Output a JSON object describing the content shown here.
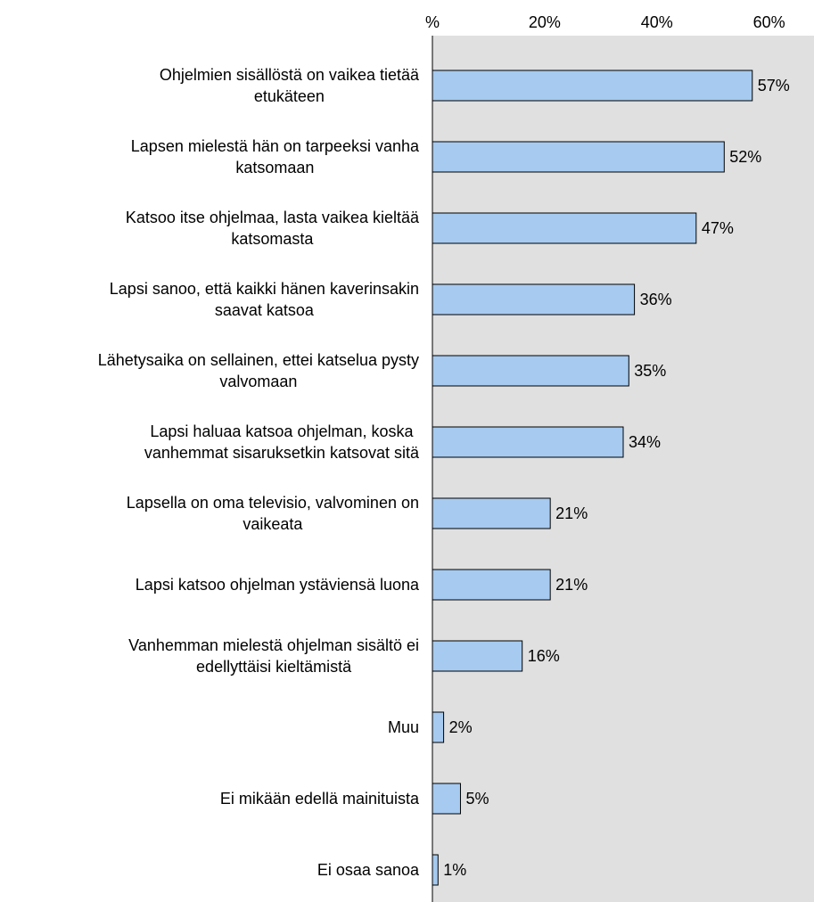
{
  "chart_data": {
    "type": "hbar",
    "categories": [
      "Ohjelmien sisällöstä on vaikea tietää\netukäteen",
      "Lapsen mielestä hän on tarpeeksi vanha\nkatsomaan",
      "Katsoo itse ohjelmaa, lasta vaikea kieltää\nkatsomasta",
      "Lapsi sanoo, että kaikki hänen kaverinsakin\nsaavat katsoa",
      "Lähetysaika on sellainen, ettei katselua pysty\nvalvomaan",
      "Lapsi haluaa katsoa ohjelman, koska\nvanhemmat sisaruksetkin katsovat sitä",
      "Lapsella on oma televisio, valvominen on\nvaikeata",
      "Lapsi katsoo ohjelman ystäviensä luona",
      "Vanhemman mielestä ohjelman sisältö ei\nedellyttäisi kieltämistä",
      "Muu",
      "Ei mikään edellä mainituista",
      "Ei osaa sanoa"
    ],
    "values": [
      57,
      52,
      47,
      36,
      35,
      34,
      21,
      21,
      16,
      2,
      5,
      1
    ],
    "value_labels": [
      "57%",
      "52%",
      "47%",
      "36%",
      "35%",
      "34%",
      "21%",
      "21%",
      "16%",
      "2%",
      "5%",
      "1%"
    ],
    "color": "#a6caf0",
    "xlim": [
      0,
      68
    ],
    "xticks": [
      {
        "value": 0,
        "label": "%"
      },
      {
        "value": 20,
        "label": "20%"
      },
      {
        "value": 40,
        "label": "40%"
      },
      {
        "value": 60,
        "label": "60%"
      }
    ],
    "background": "#e0e0e0"
  }
}
